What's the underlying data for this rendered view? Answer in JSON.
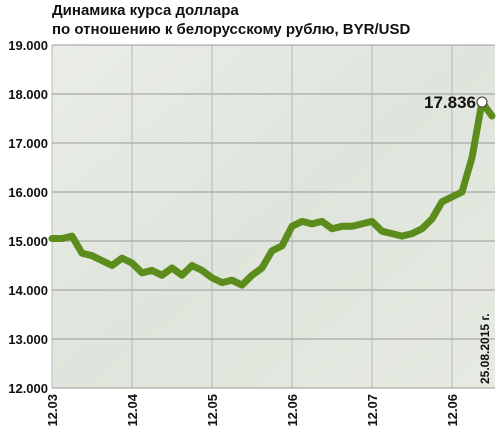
{
  "chart_data": {
    "type": "line",
    "title": "Динамика курса доллара",
    "subtitle": "по отношению к белорусскому рублю, BYR/USD",
    "categories": [
      "12.03",
      null,
      null,
      null,
      null,
      null,
      null,
      null,
      "12.04",
      null,
      null,
      null,
      null,
      null,
      null,
      null,
      "12.05",
      null,
      null,
      null,
      null,
      null,
      null,
      null,
      "12.06",
      null,
      null,
      null,
      null,
      null,
      null,
      null,
      "12.07",
      null,
      null,
      null,
      null,
      null,
      null,
      null,
      "12.06",
      null,
      null,
      null,
      null
    ],
    "series": [
      {
        "name": "BYR/USD",
        "color": "#5b8c1c",
        "values": [
          15050,
          15050,
          15100,
          14750,
          14700,
          14600,
          14500,
          14650,
          14550,
          14350,
          14400,
          14300,
          14450,
          14300,
          14500,
          14400,
          14250,
          14150,
          14200,
          14100,
          14300,
          14450,
          14800,
          14900,
          15300,
          15400,
          15350,
          15400,
          15250,
          15300,
          15300,
          15350,
          15400,
          15200,
          15150,
          15100,
          15150,
          15250,
          15450,
          15800,
          15900,
          16000,
          16700,
          17836,
          17550
        ]
      }
    ],
    "ylim": [
      12000,
      19000
    ],
    "yticks": [
      {
        "value": 12000,
        "label": "12.000"
      },
      {
        "value": 13000,
        "label": "13.000"
      },
      {
        "value": 14000,
        "label": "14.000"
      },
      {
        "value": 15000,
        "label": "15.000"
      },
      {
        "value": 16000,
        "label": "16.000"
      },
      {
        "value": 17000,
        "label": "17.000"
      },
      {
        "value": 18000,
        "label": "18.000"
      },
      {
        "value": 19000,
        "label": "19.000"
      }
    ],
    "grid": true,
    "annotation": {
      "value": 17836,
      "label": "17.836"
    },
    "date_note": "25.08.2015 г."
  }
}
